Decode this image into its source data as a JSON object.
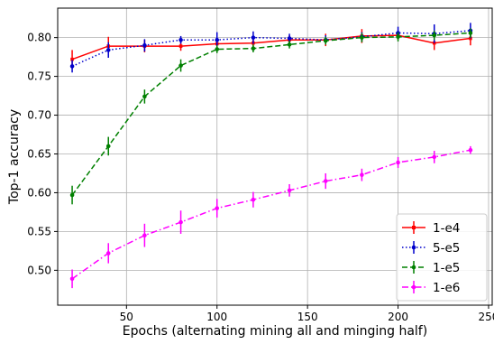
{
  "chart_data": {
    "type": "line",
    "title": "",
    "xlabel": "Epochs (alternating mining  all and minging  half)",
    "ylabel": "Top-1 accuracy",
    "xlim": [
      12,
      252
    ],
    "ylim": [
      0.455,
      0.838
    ],
    "x_ticks": [
      50,
      100,
      150,
      200,
      250
    ],
    "y_ticks": [
      0.5,
      0.55,
      0.6,
      0.65,
      0.7,
      0.75,
      0.8
    ],
    "x_tick_labels": [
      "50",
      "100",
      "150",
      "200",
      "250"
    ],
    "y_tick_labels": [
      "0.50",
      "0.55",
      "0.60",
      "0.65",
      "0.70",
      "0.75",
      "0.80"
    ],
    "grid": true,
    "legend_position": "bottom-right",
    "x": [
      20,
      40,
      60,
      80,
      100,
      120,
      140,
      160,
      180,
      200,
      220,
      240
    ],
    "series": [
      {
        "name": "1-e4",
        "color": "#ff0000",
        "line_style": "solid",
        "marker": "square",
        "values": [
          0.772,
          0.789,
          0.789,
          0.789,
          0.792,
          0.793,
          0.797,
          0.797,
          0.802,
          0.803,
          0.793,
          0.799
        ],
        "errors": [
          0.012,
          0.012,
          0.008,
          0.006,
          0.01,
          0.008,
          0.006,
          0.008,
          0.009,
          0.006,
          0.009,
          0.009
        ]
      },
      {
        "name": "5-e5",
        "color": "#0000cc",
        "line_style": "dotted",
        "marker": "circle",
        "values": [
          0.763,
          0.784,
          0.79,
          0.797,
          0.797,
          0.8,
          0.799,
          0.797,
          0.801,
          0.806,
          0.805,
          0.809
        ],
        "errors": [
          0.008,
          0.01,
          0.008,
          0.005,
          0.01,
          0.008,
          0.006,
          0.006,
          0.006,
          0.008,
          0.012,
          0.01
        ]
      },
      {
        "name": "1-e5",
        "color": "#008000",
        "line_style": "dashed",
        "marker": "circle",
        "values": [
          0.597,
          0.66,
          0.724,
          0.764,
          0.785,
          0.786,
          0.791,
          0.796,
          0.8,
          0.801,
          0.803,
          0.806
        ],
        "errors": [
          0.012,
          0.012,
          0.009,
          0.008,
          0.005,
          0.005,
          0.005,
          0.005,
          0.006,
          0.006,
          0.006,
          0.006
        ]
      },
      {
        "name": "1-e6",
        "color": "#ff00ff",
        "line_style": "dashdot",
        "marker": "circle",
        "values": [
          0.489,
          0.522,
          0.545,
          0.562,
          0.58,
          0.591,
          0.603,
          0.615,
          0.623,
          0.639,
          0.646,
          0.655
        ],
        "errors": [
          0.012,
          0.013,
          0.015,
          0.015,
          0.012,
          0.01,
          0.008,
          0.01,
          0.008,
          0.007,
          0.008,
          0.005
        ]
      }
    ]
  }
}
